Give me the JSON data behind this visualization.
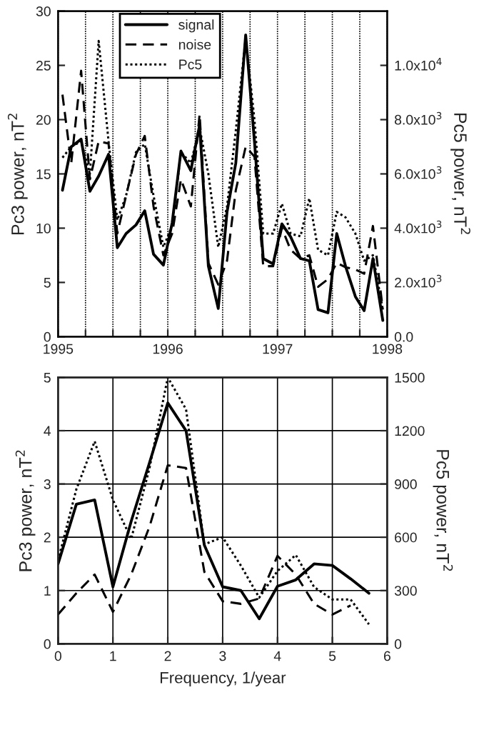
{
  "chart_data": [
    {
      "type": "line",
      "xlabel": null,
      "ylabel": "Pc3 power, nT$^{2}$",
      "y2label": "Pc5 power, nT$^{2}$",
      "grid": "x",
      "legend": "top",
      "xlim": [
        1995,
        1998
      ],
      "xticks": [
        1995,
        {
          "value": 1995.25,
          "label": null
        },
        {
          "value": 1995.5,
          "label": null
        },
        {
          "value": 1995.75,
          "label": null
        },
        1996,
        {
          "value": 1996.25,
          "label": null
        },
        {
          "value": 1996.5,
          "label": null
        },
        {
          "value": 1996.75,
          "label": null
        },
        1997,
        {
          "value": 1997.25,
          "label": null
        },
        {
          "value": 1997.5,
          "label": null
        },
        {
          "value": 1997.75,
          "label": null
        },
        1998
      ],
      "ylim": [
        0,
        30
      ],
      "yticks": [
        0,
        5,
        10,
        15,
        20,
        25,
        30
      ],
      "y2lim": [
        0,
        12000
      ],
      "y2ticks": [
        {
          "value": 0,
          "label": "0.0"
        },
        {
          "value": 2000,
          "label": "2.0x10$^{3}$"
        },
        {
          "value": 4000,
          "label": "4.0x10$^{3}$"
        },
        {
          "value": 6000,
          "label": "6.0x10$^{3}$"
        },
        {
          "value": 8000,
          "label": "8.0x10$^{3}$"
        },
        {
          "value": 10000,
          "label": "1.0x10$^{4}$"
        }
      ],
      "x": [
        1995.04,
        1995.12,
        1995.21,
        1995.29,
        1995.37,
        1995.46,
        1995.54,
        1995.62,
        1995.71,
        1995.79,
        1995.87,
        1995.96,
        1996.04,
        1996.12,
        1996.21,
        1996.29,
        1996.37,
        1996.46,
        1996.54,
        1996.62,
        1996.71,
        1996.79,
        1996.87,
        1996.96,
        1997.04,
        1997.12,
        1997.21,
        1997.29,
        1997.37,
        1997.46,
        1997.54,
        1997.62,
        1997.71,
        1997.79,
        1997.87,
        1997.96
      ],
      "series": [
        {
          "name": "signal",
          "color": "#000000",
          "line_style": "solid",
          "values": [
            13.5,
            17.5,
            18.2,
            13.4,
            14.8,
            16.8,
            8.2,
            9.5,
            10.3,
            11.6,
            7.6,
            6.6,
            10.5,
            17.1,
            15.3,
            19.5,
            6.5,
            2.6,
            11.5,
            16,
            27.8,
            18,
            7.2,
            6.7,
            10.4,
            9.2,
            7.2,
            7,
            2.5,
            2.2,
            9.5,
            6.5,
            3.7,
            2.4,
            7.2,
            1.5
          ]
        },
        {
          "name": "noise",
          "color": "#000000",
          "line_style": "dashed",
          "values": [
            22.3,
            16,
            24.5,
            14.5,
            18,
            17.8,
            9.5,
            13,
            16.8,
            18.5,
            12,
            7.5,
            9.5,
            14.5,
            12,
            20.5,
            6.8,
            4.8,
            7,
            13.5,
            17.5,
            16.6,
            6.5,
            6.5,
            10,
            8,
            7.2,
            7.5,
            4.6,
            5.3,
            6.8,
            6.4,
            6.2,
            5.8,
            10.2,
            2.5
          ]
        },
        {
          "name": "Pc5",
          "color": "#000000",
          "line_style": "dotted",
          "axis": "y2",
          "values": [
            6600,
            7000,
            7200,
            6000,
            10900,
            7200,
            4300,
            5200,
            6800,
            7100,
            5200,
            3300,
            4100,
            6800,
            6400,
            7700,
            6000,
            3300,
            4800,
            7600,
            11000,
            8000,
            3800,
            3800,
            4900,
            3800,
            3700,
            5100,
            3200,
            3000,
            4600,
            4400,
            3800,
            2800,
            3000,
            1000
          ]
        }
      ]
    },
    {
      "type": "line",
      "xlabel": "Frequency, 1/year",
      "ylabel": "Pc3 power, nT$^{2}$",
      "y2label": "Pc5 power, nT$^{2}$",
      "grid": true,
      "xlim": [
        0,
        6
      ],
      "xticks": [
        0,
        1,
        2,
        3,
        4,
        5,
        6
      ],
      "ylim": [
        0,
        5
      ],
      "yticks": [
        0,
        1,
        2,
        3,
        4,
        5
      ],
      "y2lim": [
        0,
        1500
      ],
      "y2ticks": [
        0,
        300,
        600,
        900,
        1200,
        1500
      ],
      "x": [
        0,
        0.333,
        0.667,
        1,
        1.333,
        1.667,
        2,
        2.333,
        2.667,
        3,
        3.333,
        3.667,
        4,
        4.333,
        4.667,
        5,
        5.333,
        5.667
      ],
      "series": [
        {
          "color": "#000000",
          "line_style": "solid",
          "values": [
            1.5,
            2.62,
            2.7,
            1.07,
            2.3,
            3.4,
            4.52,
            4.0,
            1.85,
            1.07,
            1.0,
            0.47,
            1.08,
            1.2,
            1.5,
            1.47,
            1.22,
            0.95
          ]
        },
        {
          "color": "#000000",
          "line_style": "dashed",
          "values": [
            0.55,
            0.95,
            1.3,
            0.6,
            1.3,
            2.2,
            3.35,
            3.3,
            1.35,
            0.8,
            0.75,
            0.85,
            1.65,
            1.3,
            0.75,
            0.55,
            0.72,
            null
          ]
        },
        {
          "color": "#000000",
          "line_style": "dotted",
          "axis": "y2",
          "values": [
            470,
            870,
            1140,
            810,
            590,
            990,
            1500,
            1320,
            560,
            600,
            440,
            260,
            410,
            500,
            320,
            250,
            250,
            110
          ]
        }
      ]
    }
  ]
}
